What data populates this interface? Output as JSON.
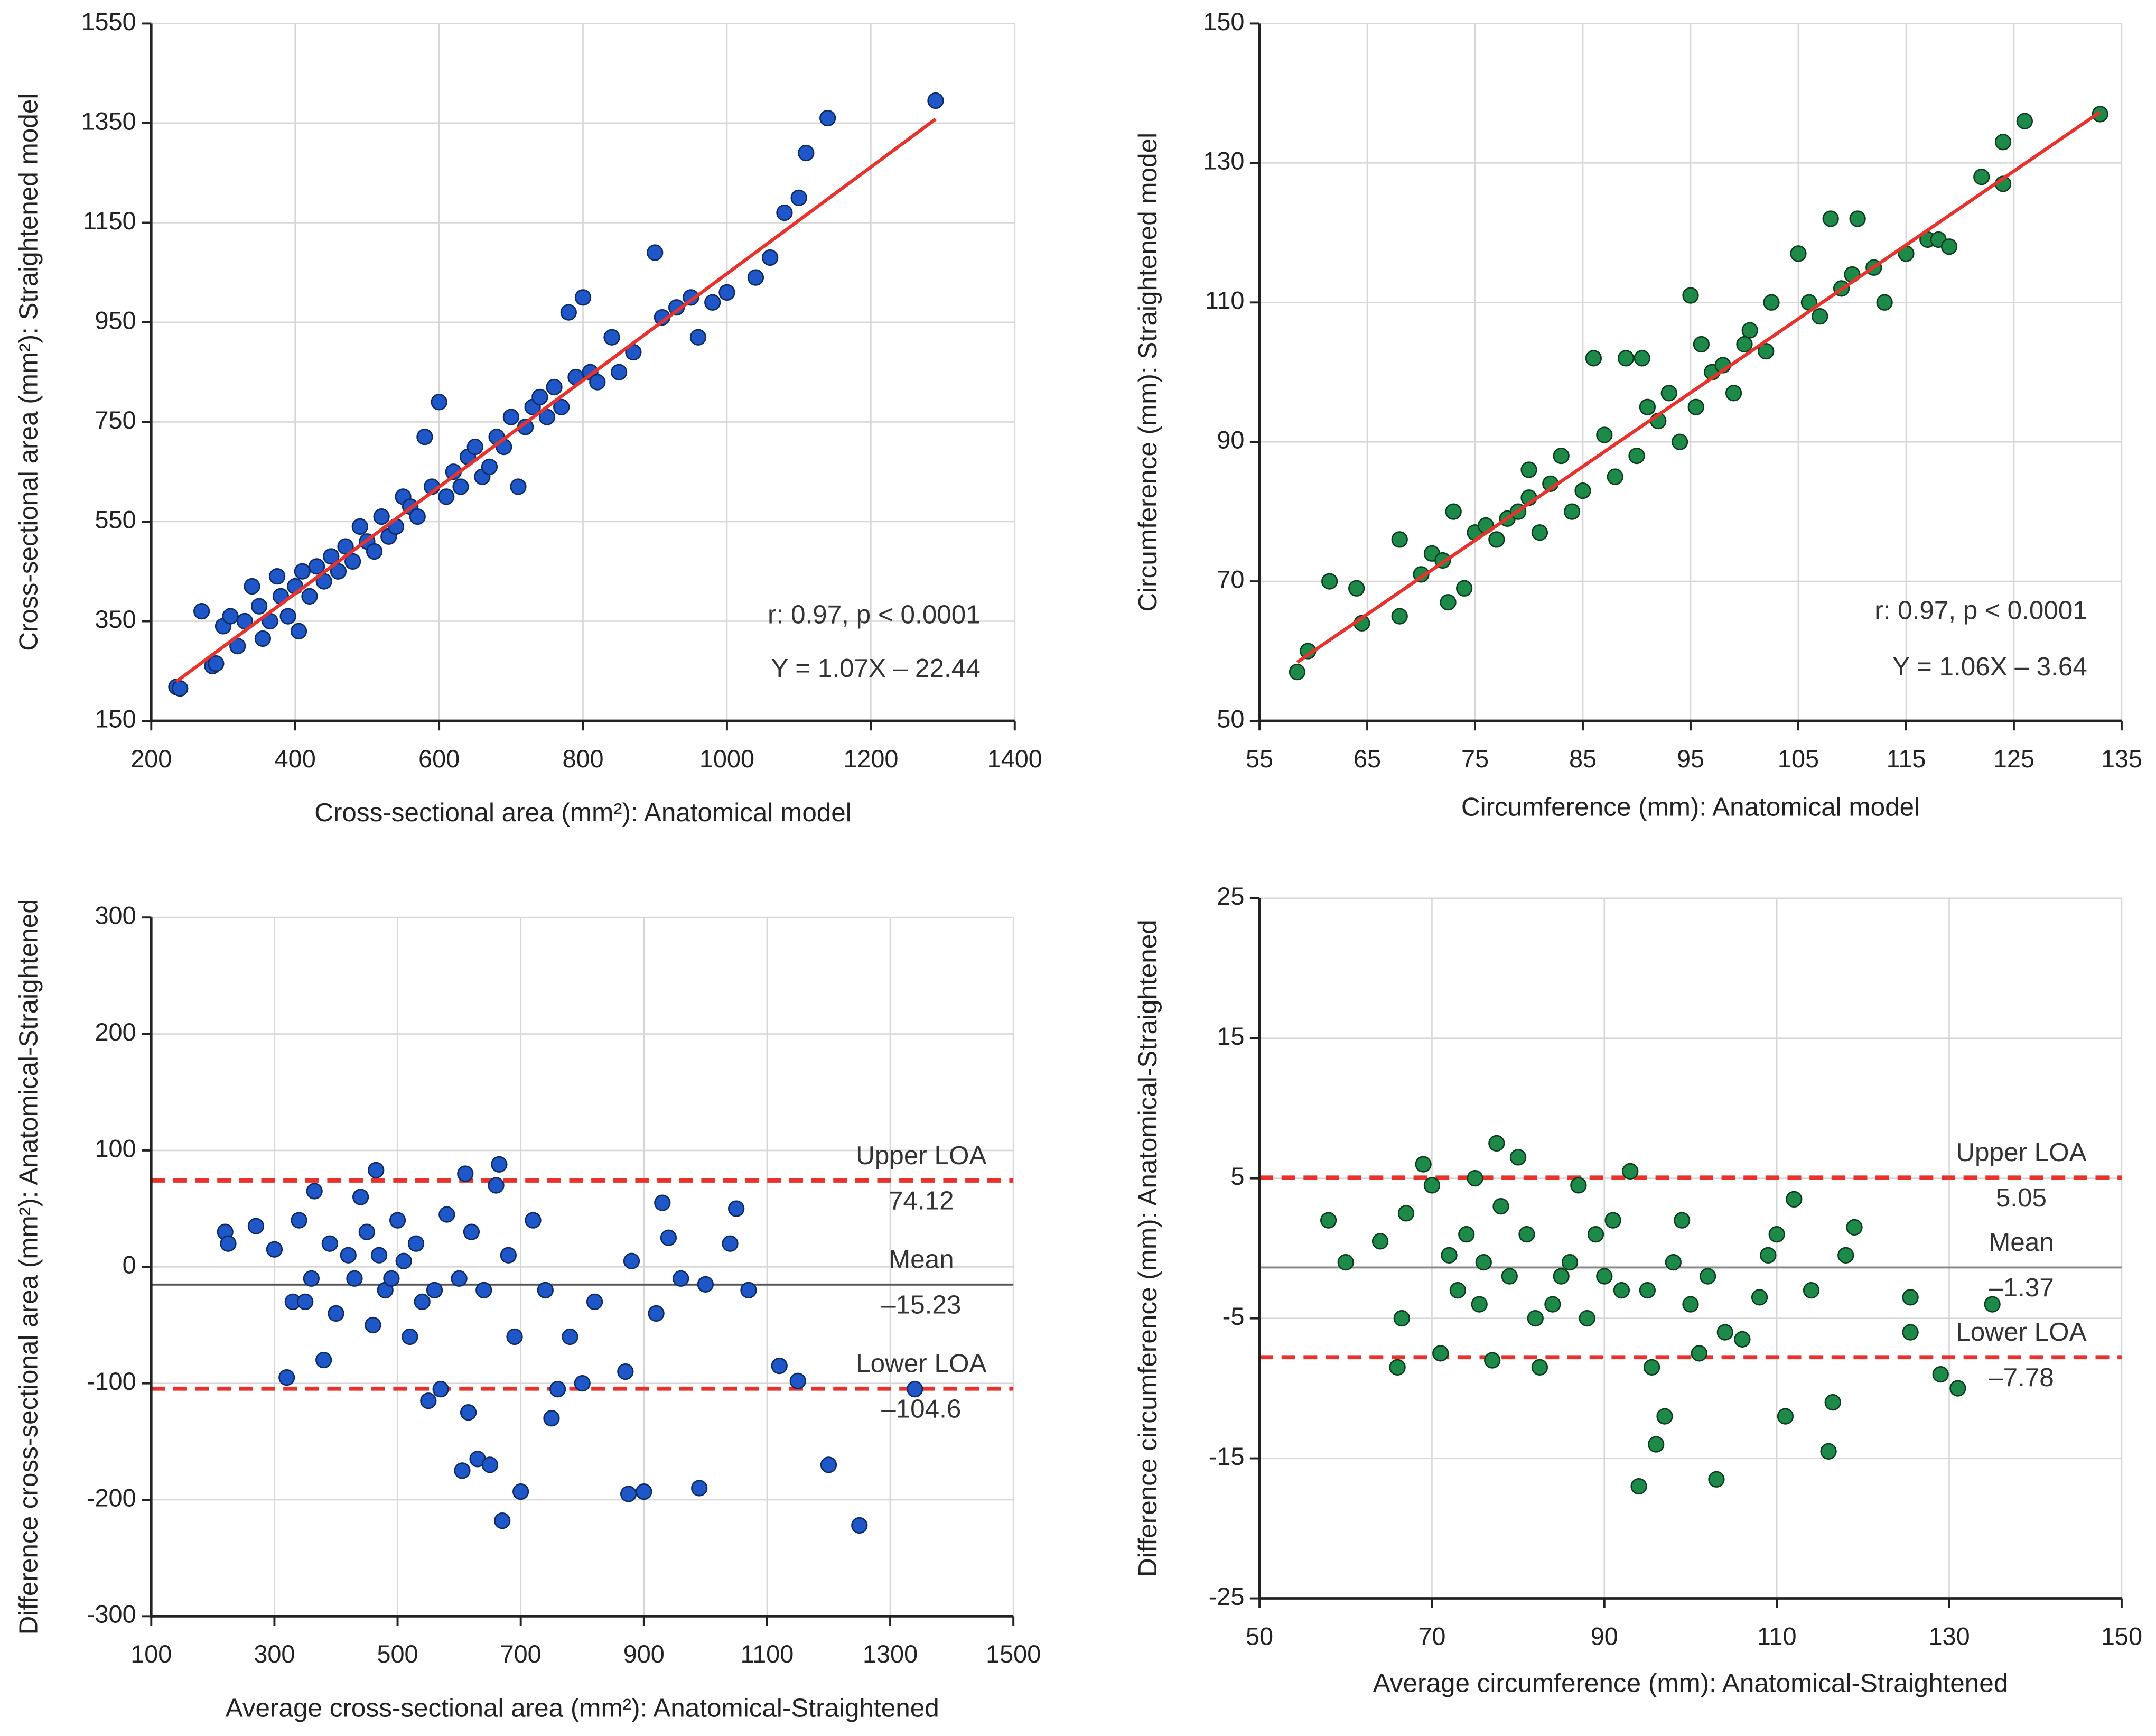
{
  "chart_data": [
    {
      "type": "scatter",
      "x_label": "Cross-sectional area (mm²): Anatomical model",
      "y_label": "Cross-sectional area (mm²): Straightened model",
      "xlim": [
        200,
        1400
      ],
      "xticks": [
        200,
        400,
        600,
        800,
        1000,
        1200,
        1400
      ],
      "ylim": [
        150,
        1550
      ],
      "yticks": [
        150,
        350,
        550,
        750,
        950,
        1150,
        1350,
        1550
      ],
      "grid": true,
      "color": "#1f56c8",
      "x": [
        235,
        240,
        270,
        285,
        290,
        300,
        310,
        320,
        330,
        340,
        350,
        355,
        365,
        375,
        380,
        390,
        400,
        405,
        410,
        420,
        430,
        440,
        450,
        460,
        470,
        480,
        490,
        500,
        510,
        520,
        530,
        540,
        550,
        560,
        570,
        580,
        590,
        600,
        610,
        620,
        630,
        640,
        650,
        660,
        670,
        680,
        690,
        700,
        710,
        720,
        730,
        740,
        750,
        760,
        770,
        780,
        790,
        800,
        810,
        820,
        840,
        850,
        870,
        900,
        910,
        930,
        950,
        960,
        980,
        1000,
        1040,
        1060,
        1080,
        1100,
        1110,
        1140,
        1290
      ],
      "values": [
        218,
        215,
        370,
        260,
        265,
        340,
        360,
        300,
        350,
        420,
        380,
        315,
        350,
        440,
        400,
        360,
        420,
        330,
        450,
        400,
        460,
        430,
        480,
        450,
        500,
        470,
        540,
        510,
        490,
        560,
        520,
        540,
        600,
        580,
        560,
        720,
        620,
        790,
        600,
        650,
        620,
        680,
        700,
        640,
        660,
        720,
        700,
        760,
        620,
        740,
        780,
        800,
        760,
        820,
        780,
        970,
        840,
        1000,
        850,
        830,
        920,
        850,
        890,
        1090,
        960,
        980,
        1000,
        920,
        990,
        1010,
        1040,
        1080,
        1170,
        1200,
        1290,
        1360,
        1395
      ],
      "fit_line": {
        "x": [
          235,
          1290
        ],
        "y": [
          229,
          1358
        ],
        "color": "#e8322b"
      },
      "annotations": [
        "r: 0.97, p < 0.0001",
        "Y = 1.07X – 22.44"
      ]
    },
    {
      "type": "scatter",
      "x_label": "Circumference (mm): Anatomical model",
      "y_label": "Circumference (mm): Straightened model",
      "xlim": [
        55,
        135
      ],
      "xticks": [
        55,
        65,
        75,
        85,
        95,
        105,
        115,
        125,
        135
      ],
      "ylim": [
        50,
        150
      ],
      "yticks": [
        50,
        70,
        90,
        110,
        130,
        150
      ],
      "grid": true,
      "color": "#1e8a4a",
      "x": [
        58.5,
        59.5,
        61.5,
        64,
        64.5,
        68,
        68,
        70,
        71,
        72,
        72.5,
        73,
        74,
        75,
        76,
        77,
        78,
        79,
        80,
        80,
        81,
        82,
        83,
        84,
        85,
        86,
        87,
        88,
        89,
        90,
        90.5,
        91,
        92,
        93,
        94,
        95,
        95.5,
        96,
        97,
        98,
        99,
        100,
        100.5,
        102,
        102.5,
        105,
        106,
        107,
        108,
        109,
        110,
        110.5,
        112,
        113,
        115,
        117,
        118,
        119,
        122,
        124,
        124,
        126,
        133
      ],
      "values": [
        57,
        60,
        70,
        69,
        64,
        65,
        76,
        71,
        74,
        73,
        67,
        80,
        69,
        77,
        78,
        76,
        79,
        80,
        82,
        86,
        77,
        84,
        88,
        80,
        83,
        102,
        91,
        85,
        102,
        88,
        102,
        95,
        93,
        97,
        90,
        111,
        95,
        104,
        100,
        101,
        97,
        104,
        106,
        103,
        110,
        117,
        110,
        108,
        122,
        112,
        114,
        122,
        115,
        110,
        117,
        119,
        119,
        118,
        128,
        127,
        133,
        136,
        137
      ],
      "fit_line": {
        "x": [
          58.5,
          133
        ],
        "y": [
          58.4,
          137.3
        ],
        "color": "#e8322b"
      },
      "annotations": [
        "r: 0.97, p < 0.0001",
        "Y = 1.06X – 3.64"
      ]
    },
    {
      "type": "scatter",
      "x_label": "Average cross-sectional area (mm²): Anatomical-Straightened",
      "y_label": "Difference cross-sectional area (mm²): Anatomical-Straightened",
      "xlim": [
        100,
        1500
      ],
      "xticks": [
        100,
        300,
        500,
        700,
        900,
        1100,
        1300,
        1500
      ],
      "ylim": [
        -300,
        300
      ],
      "yticks": [
        -300,
        -200,
        -100,
        0,
        100,
        200,
        300
      ],
      "grid": true,
      "color": "#1f56c8",
      "x": [
        220,
        225,
        270,
        300,
        320,
        330,
        340,
        350,
        360,
        365,
        380,
        390,
        400,
        420,
        430,
        440,
        450,
        460,
        465,
        470,
        480,
        490,
        500,
        510,
        520,
        530,
        540,
        550,
        560,
        570,
        580,
        600,
        605,
        610,
        615,
        620,
        630,
        640,
        650,
        660,
        665,
        670,
        680,
        690,
        700,
        720,
        740,
        750,
        760,
        780,
        800,
        820,
        870,
        875,
        880,
        900,
        920,
        930,
        940,
        960,
        990,
        1000,
        1040,
        1050,
        1070,
        1120,
        1150,
        1200,
        1250,
        1340
      ],
      "values": [
        30,
        20,
        35,
        15,
        -95,
        -30,
        40,
        -30,
        -10,
        65,
        -80,
        20,
        -40,
        10,
        -10,
        60,
        30,
        -50,
        83,
        10,
        -20,
        -10,
        40,
        5,
        -60,
        20,
        -30,
        -115,
        -20,
        -105,
        45,
        -10,
        -175,
        80,
        -125,
        30,
        -165,
        -20,
        -170,
        70,
        88,
        -218,
        10,
        -60,
        -193,
        40,
        -20,
        -130,
        -105,
        -60,
        -100,
        -30,
        -90,
        -195,
        5,
        -193,
        -40,
        55,
        25,
        -10,
        -190,
        -15,
        20,
        50,
        -20,
        -85,
        -98,
        -170,
        -222,
        -105
      ],
      "reference_lines": [
        {
          "name": "Upper LOA",
          "value": 74.12,
          "color": "#e8322b",
          "dashed": true
        },
        {
          "name": "Mean",
          "value": -15.23,
          "value_label": "–15.23",
          "color": "#555555",
          "dashed": false
        },
        {
          "name": "Lower LOA",
          "value": -104.6,
          "value_label": "–104.6",
          "color": "#e8322b",
          "dashed": true
        }
      ]
    },
    {
      "type": "scatter",
      "x_label": "Average circumference (mm): Anatomical-Straightened",
      "y_label": "Difference circumference (mm): Anatomical-Straightened",
      "xlim": [
        50,
        150
      ],
      "xticks": [
        50,
        70,
        90,
        110,
        130,
        150
      ],
      "ylim": [
        -25,
        25
      ],
      "yticks": [
        -25,
        -15,
        -5,
        5,
        15,
        25
      ],
      "grid": true,
      "color": "#1e8a4a",
      "x": [
        58,
        60,
        64,
        66,
        66.5,
        67,
        69,
        70,
        71,
        72,
        73,
        74,
        75,
        75.5,
        76,
        77,
        77.5,
        78,
        79,
        80,
        81,
        82,
        82.5,
        84,
        85,
        86,
        87,
        88,
        89,
        90,
        91,
        92,
        93,
        94,
        95,
        95.5,
        96,
        97,
        98,
        99,
        100,
        101,
        102,
        103,
        104,
        106,
        108,
        109,
        110,
        111,
        112,
        114,
        116,
        116.5,
        118,
        119,
        125.5,
        125.5,
        129,
        131,
        135
      ],
      "values": [
        2,
        -1,
        0.5,
        -8.5,
        -5,
        2.5,
        6,
        4.5,
        -7.5,
        -0.5,
        -3,
        1,
        5,
        -4,
        -1,
        -8,
        7.5,
        3,
        -2,
        6.5,
        1,
        -5,
        -8.5,
        -4,
        -2,
        -1,
        4.5,
        -5,
        1,
        -2,
        2,
        -3,
        5.5,
        -17,
        -3,
        -8.5,
        -14,
        -12,
        -1,
        2,
        -4,
        -7.5,
        -2,
        -16.5,
        -6,
        -6.5,
        -3.5,
        -0.5,
        1,
        -12,
        3.5,
        -3,
        -14.5,
        -11,
        -0.5,
        1.5,
        -3.5,
        -6,
        -9,
        -10,
        -4
      ],
      "reference_lines": [
        {
          "name": "Upper LOA",
          "value": 5.05,
          "color": "#e8322b",
          "dashed": true
        },
        {
          "name": "Mean",
          "value": -1.37,
          "value_label": "–1.37",
          "color": "#888888",
          "dashed": false
        },
        {
          "name": "Lower LOA",
          "value": -7.78,
          "value_label": "–7.78",
          "color": "#e8322b",
          "dashed": true
        }
      ]
    }
  ]
}
